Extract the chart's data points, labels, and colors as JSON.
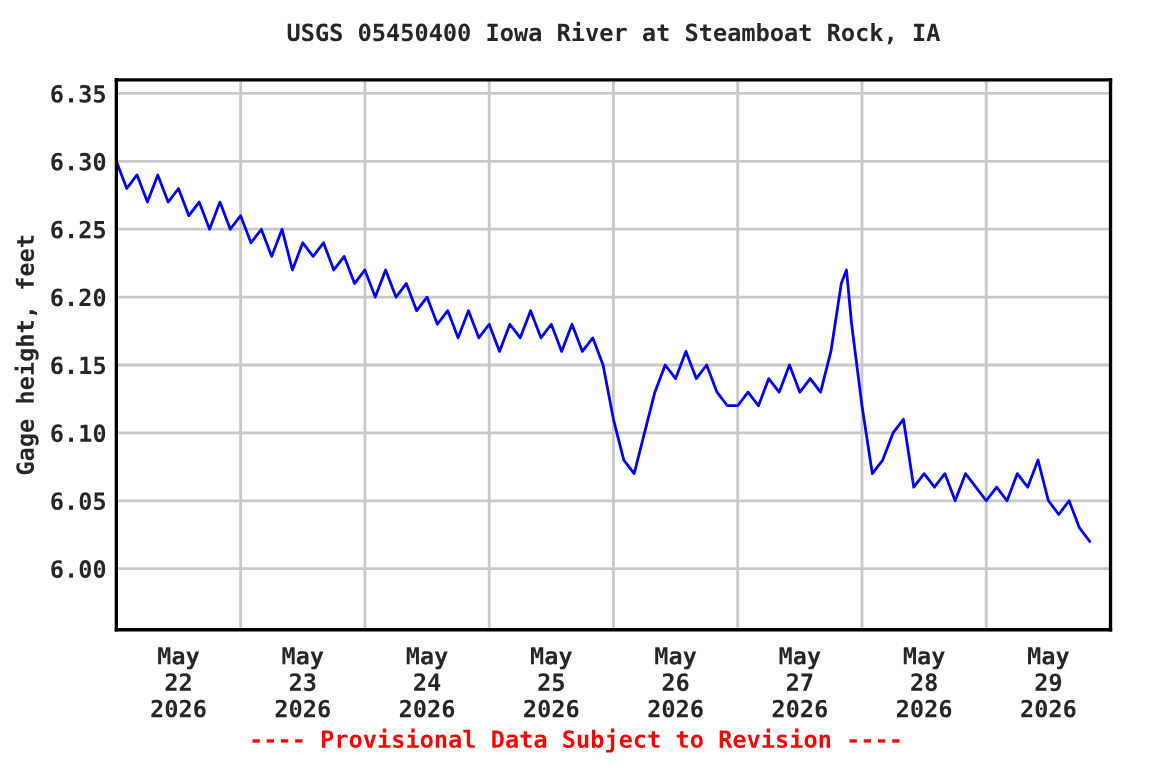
{
  "chart_data": {
    "type": "line",
    "title": "USGS 05450400 Iowa River at Steamboat Rock, IA",
    "ylabel": "Gage height, feet",
    "x": [
      "2026-05-22T00:00",
      "2026-05-22T02:00",
      "2026-05-22T04:00",
      "2026-05-22T06:00",
      "2026-05-22T08:00",
      "2026-05-22T10:00",
      "2026-05-22T12:00",
      "2026-05-22T14:00",
      "2026-05-22T16:00",
      "2026-05-22T18:00",
      "2026-05-22T20:00",
      "2026-05-22T22:00",
      "2026-05-23T00:00",
      "2026-05-23T02:00",
      "2026-05-23T04:00",
      "2026-05-23T06:00",
      "2026-05-23T08:00",
      "2026-05-23T10:00",
      "2026-05-23T12:00",
      "2026-05-23T14:00",
      "2026-05-23T16:00",
      "2026-05-23T18:00",
      "2026-05-23T20:00",
      "2026-05-23T22:00",
      "2026-05-24T00:00",
      "2026-05-24T02:00",
      "2026-05-24T04:00",
      "2026-05-24T06:00",
      "2026-05-24T08:00",
      "2026-05-24T10:00",
      "2026-05-24T12:00",
      "2026-05-24T14:00",
      "2026-05-24T16:00",
      "2026-05-24T18:00",
      "2026-05-24T20:00",
      "2026-05-24T22:00",
      "2026-05-25T00:00",
      "2026-05-25T02:00",
      "2026-05-25T04:00",
      "2026-05-25T06:00",
      "2026-05-25T08:00",
      "2026-05-25T10:00",
      "2026-05-25T12:00",
      "2026-05-25T14:00",
      "2026-05-25T16:00",
      "2026-05-25T18:00",
      "2026-05-25T20:00",
      "2026-05-25T22:00",
      "2026-05-26T00:00",
      "2026-05-26T02:00",
      "2026-05-26T04:00",
      "2026-05-26T06:00",
      "2026-05-26T08:00",
      "2026-05-26T10:00",
      "2026-05-26T12:00",
      "2026-05-26T14:00",
      "2026-05-26T16:00",
      "2026-05-26T18:00",
      "2026-05-26T20:00",
      "2026-05-26T22:00",
      "2026-05-27T00:00",
      "2026-05-27T02:00",
      "2026-05-27T04:00",
      "2026-05-27T06:00",
      "2026-05-27T08:00",
      "2026-05-27T10:00",
      "2026-05-27T12:00",
      "2026-05-27T14:00",
      "2026-05-27T16:00",
      "2026-05-27T18:00",
      "2026-05-27T20:00",
      "2026-05-27T21:00",
      "2026-05-27T22:00",
      "2026-05-28T00:00",
      "2026-05-28T02:00",
      "2026-05-28T04:00",
      "2026-05-28T06:00",
      "2026-05-28T08:00",
      "2026-05-28T10:00",
      "2026-05-28T12:00",
      "2026-05-28T14:00",
      "2026-05-28T16:00",
      "2026-05-28T18:00",
      "2026-05-28T20:00",
      "2026-05-28T22:00",
      "2026-05-29T00:00",
      "2026-05-29T02:00",
      "2026-05-29T04:00",
      "2026-05-29T06:00",
      "2026-05-29T08:00",
      "2026-05-29T10:00",
      "2026-05-29T12:00",
      "2026-05-29T14:00",
      "2026-05-29T16:00",
      "2026-05-29T18:00",
      "2026-05-29T20:00"
    ],
    "series": [
      {
        "color": "#0000ff",
        "values": [
          6.3,
          6.28,
          6.29,
          6.27,
          6.29,
          6.27,
          6.28,
          6.26,
          6.27,
          6.25,
          6.27,
          6.25,
          6.26,
          6.24,
          6.25,
          6.23,
          6.25,
          6.22,
          6.24,
          6.23,
          6.24,
          6.22,
          6.23,
          6.21,
          6.22,
          6.2,
          6.22,
          6.2,
          6.21,
          6.19,
          6.2,
          6.18,
          6.19,
          6.17,
          6.19,
          6.17,
          6.18,
          6.16,
          6.18,
          6.17,
          6.19,
          6.17,
          6.18,
          6.16,
          6.18,
          6.16,
          6.17,
          6.15,
          6.11,
          6.08,
          6.07,
          6.1,
          6.13,
          6.15,
          6.14,
          6.16,
          6.14,
          6.15,
          6.13,
          6.12,
          6.12,
          6.13,
          6.12,
          6.14,
          6.13,
          6.15,
          6.13,
          6.14,
          6.13,
          6.16,
          6.21,
          6.22,
          6.18,
          6.12,
          6.07,
          6.08,
          6.1,
          6.11,
          6.06,
          6.07,
          6.06,
          6.07,
          6.05,
          6.07,
          6.06,
          6.05,
          6.06,
          6.05,
          6.07,
          6.06,
          6.08,
          6.05,
          6.04,
          6.05,
          6.03,
          6.02
        ]
      }
    ],
    "xlim": [
      "2026-05-22T00:00",
      "2026-05-30T00:00"
    ],
    "xticks": [
      {
        "value": "2026-05-22T12:00",
        "label": "May\n22\n2026"
      },
      {
        "value": "2026-05-23T00:00",
        "label": null
      },
      {
        "value": "2026-05-23T12:00",
        "label": "May\n23\n2026"
      },
      {
        "value": "2026-05-24T00:00",
        "label": null
      },
      {
        "value": "2026-05-24T12:00",
        "label": "May\n24\n2026"
      },
      {
        "value": "2026-05-25T00:00",
        "label": null
      },
      {
        "value": "2026-05-25T12:00",
        "label": "May\n25\n2026"
      },
      {
        "value": "2026-05-26T00:00",
        "label": null
      },
      {
        "value": "2026-05-26T12:00",
        "label": "May\n26\n2026"
      },
      {
        "value": "2026-05-27T00:00",
        "label": null
      },
      {
        "value": "2026-05-27T12:00",
        "label": "May\n27\n2026"
      },
      {
        "value": "2026-05-28T00:00",
        "label": null
      },
      {
        "value": "2026-05-28T12:00",
        "label": "May\n28\n2026"
      },
      {
        "value": "2026-05-29T00:00",
        "label": null
      },
      {
        "value": "2026-05-29T12:00",
        "label": "May\n29\n2026"
      }
    ],
    "ylim": [
      5.955,
      6.36
    ],
    "yticks": [
      {
        "value": 6.0,
        "label": "6.00"
      },
      {
        "value": 6.05,
        "label": "6.05"
      },
      {
        "value": 6.1,
        "label": "6.10"
      },
      {
        "value": 6.15,
        "label": "6.15"
      },
      {
        "value": 6.2,
        "label": "6.20"
      },
      {
        "value": 6.25,
        "label": "6.25"
      },
      {
        "value": 6.3,
        "label": "6.30"
      },
      {
        "value": 6.35,
        "label": "6.35"
      }
    ],
    "grid": true,
    "annotations": [
      "---- Provisional Data Subject to Revision ----"
    ]
  }
}
